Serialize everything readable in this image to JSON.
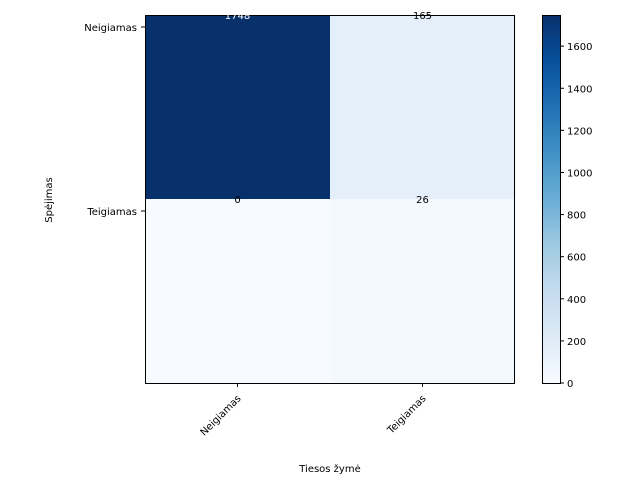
{
  "chart_data": {
    "type": "heatmap",
    "title": "",
    "xlabel": "Tiesos žymė",
    "ylabel": "Spėjimas",
    "x_categories": [
      "Neigiamas",
      "Teigiamas"
    ],
    "y_categories": [
      "Neigiamas",
      "Teigiamas"
    ],
    "values": [
      [
        1748,
        165
      ],
      [
        0,
        26
      ]
    ],
    "colormap": "Blues",
    "colorbar": {
      "range": [
        0,
        1748
      ],
      "ticks": [
        0,
        200,
        400,
        600,
        800,
        1000,
        1200,
        1400,
        1600
      ]
    },
    "text_colors": {
      "dark_bg": "#ffffff",
      "light_bg": "#000000"
    }
  }
}
